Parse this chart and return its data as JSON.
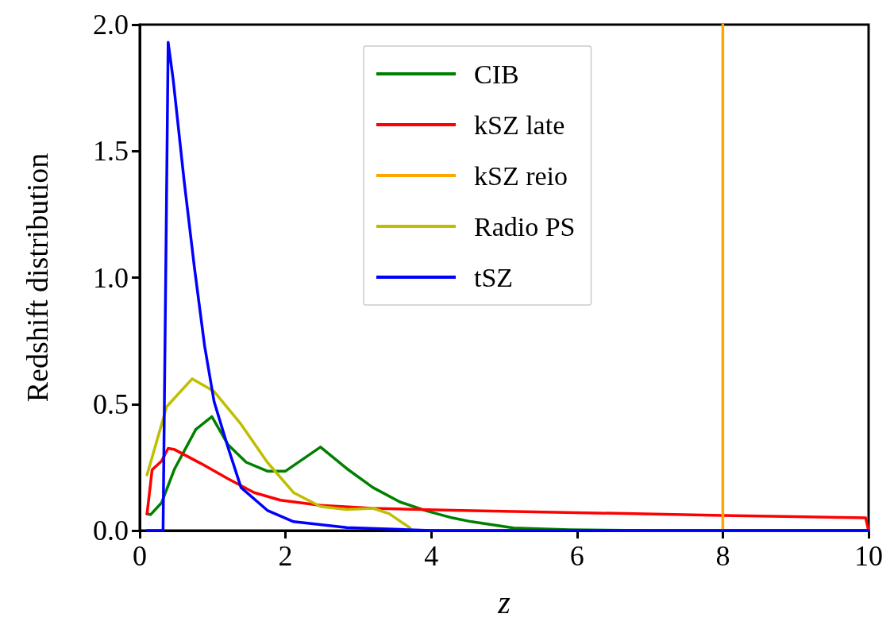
{
  "chart_data": {
    "type": "line",
    "xlabel": "z",
    "ylabel": "Redshift distribution",
    "xlim": [
      0,
      10
    ],
    "xticks": [
      0,
      2,
      4,
      6,
      8,
      10
    ],
    "ylim": [
      0,
      2.0
    ],
    "yticks": [
      {
        "value": 0,
        "label": "0.0"
      },
      {
        "value": 0.5,
        "label": "0.5"
      },
      {
        "value": 1.0,
        "label": "1.0"
      },
      {
        "value": 1.5,
        "label": "1.5"
      },
      {
        "value": 2.0,
        "label": "2.0"
      }
    ],
    "grid": false,
    "legend": "top",
    "marker": "none",
    "line_style": "solid",
    "series": [
      {
        "name": "CIB",
        "color": "#008000",
        "x": [
          0.1,
          0.15,
          0.3,
          0.48,
          0.77,
          0.99,
          1.21,
          1.46,
          1.75,
          2.0,
          2.48,
          2.84,
          3.2,
          3.57,
          3.93,
          4.29,
          4.55,
          5.13,
          5.9,
          7.0,
          10.0
        ],
        "values": [
          0.066,
          0.063,
          0.11,
          0.245,
          0.4,
          0.45,
          0.34,
          0.27,
          0.235,
          0.235,
          0.33,
          0.245,
          0.17,
          0.113,
          0.078,
          0.05,
          0.035,
          0.01,
          0.003,
          0.0,
          0.0
        ]
      },
      {
        "name": "kSZ late",
        "color": "#ff0000",
        "x": [
          0.1,
          0.17,
          0.3,
          0.39,
          0.48,
          0.84,
          1.21,
          1.57,
          1.93,
          2.48,
          3.2,
          4.29,
          8.0,
          9.96,
          10.0
        ],
        "values": [
          0.066,
          0.24,
          0.275,
          0.325,
          0.32,
          0.265,
          0.205,
          0.15,
          0.12,
          0.1,
          0.088,
          0.08,
          0.06,
          0.05,
          0.0
        ]
      },
      {
        "name": "kSZ reio",
        "color": "#ffa500",
        "x": [
          8,
          8
        ],
        "values": [
          0,
          2.0
        ]
      },
      {
        "name": "Radio PS",
        "color": "#bfbf00",
        "x": [
          0.1,
          0.37,
          0.72,
          1.02,
          1.39,
          1.75,
          2.11,
          2.48,
          2.84,
          3.2,
          3.42,
          3.71
        ],
        "values": [
          0.22,
          0.49,
          0.6,
          0.55,
          0.42,
          0.27,
          0.15,
          0.095,
          0.083,
          0.088,
          0.067,
          0.01
        ]
      },
      {
        "name": "tSZ",
        "color": "#0000ff",
        "x": [
          0.1,
          0.32,
          0.39,
          0.46,
          0.61,
          0.75,
          0.89,
          1.02,
          1.21,
          1.39,
          1.75,
          2.11,
          2.84,
          4.0,
          10.0
        ],
        "values": [
          0.0,
          0.0,
          1.93,
          1.78,
          1.38,
          1.04,
          0.73,
          0.51,
          0.33,
          0.17,
          0.08,
          0.035,
          0.012,
          0.0,
          0.0
        ]
      }
    ]
  }
}
